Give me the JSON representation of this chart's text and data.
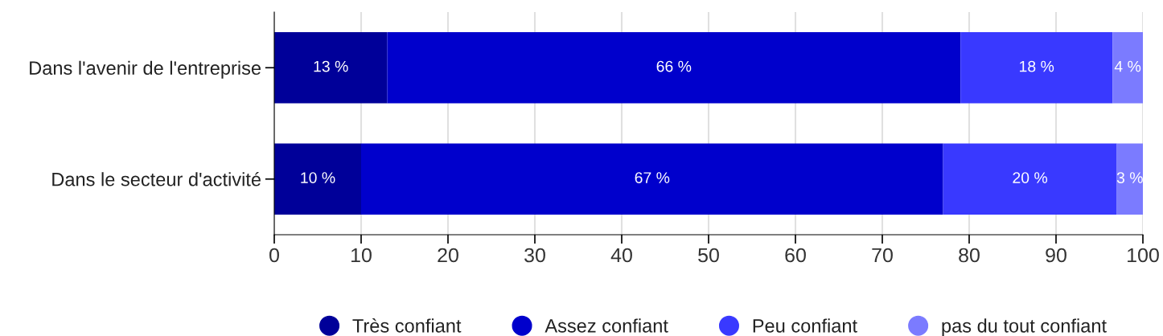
{
  "chart_data": {
    "type": "bar",
    "orientation": "horizontal",
    "stacked": true,
    "categories": [
      "Dans l'avenir de l'entreprise",
      "Dans le secteur d'activité"
    ],
    "series": [
      {
        "name": "Très confiant",
        "color": "#000099",
        "values": [
          13,
          10
        ],
        "value_labels": [
          "13 %",
          "10 %"
        ]
      },
      {
        "name": "Assez confiant",
        "color": "#0000cc",
        "values": [
          66,
          67
        ],
        "value_labels": [
          "66 %",
          "67 %"
        ]
      },
      {
        "name": "Peu confiant",
        "color": "#3939ff",
        "values": [
          17.5,
          20
        ],
        "value_labels": [
          "18 %",
          "20 %"
        ]
      },
      {
        "name": "pas du tout confiant",
        "color": "#7b7bff",
        "values": [
          3.5,
          3
        ],
        "value_labels": [
          "4 %",
          "3 %"
        ]
      }
    ],
    "xlim": [
      0,
      100
    ],
    "xticks": [
      0,
      10,
      20,
      30,
      40,
      50,
      60,
      70,
      80,
      90,
      100
    ],
    "grid": "x",
    "legend": "bottom",
    "marker": "circle"
  }
}
